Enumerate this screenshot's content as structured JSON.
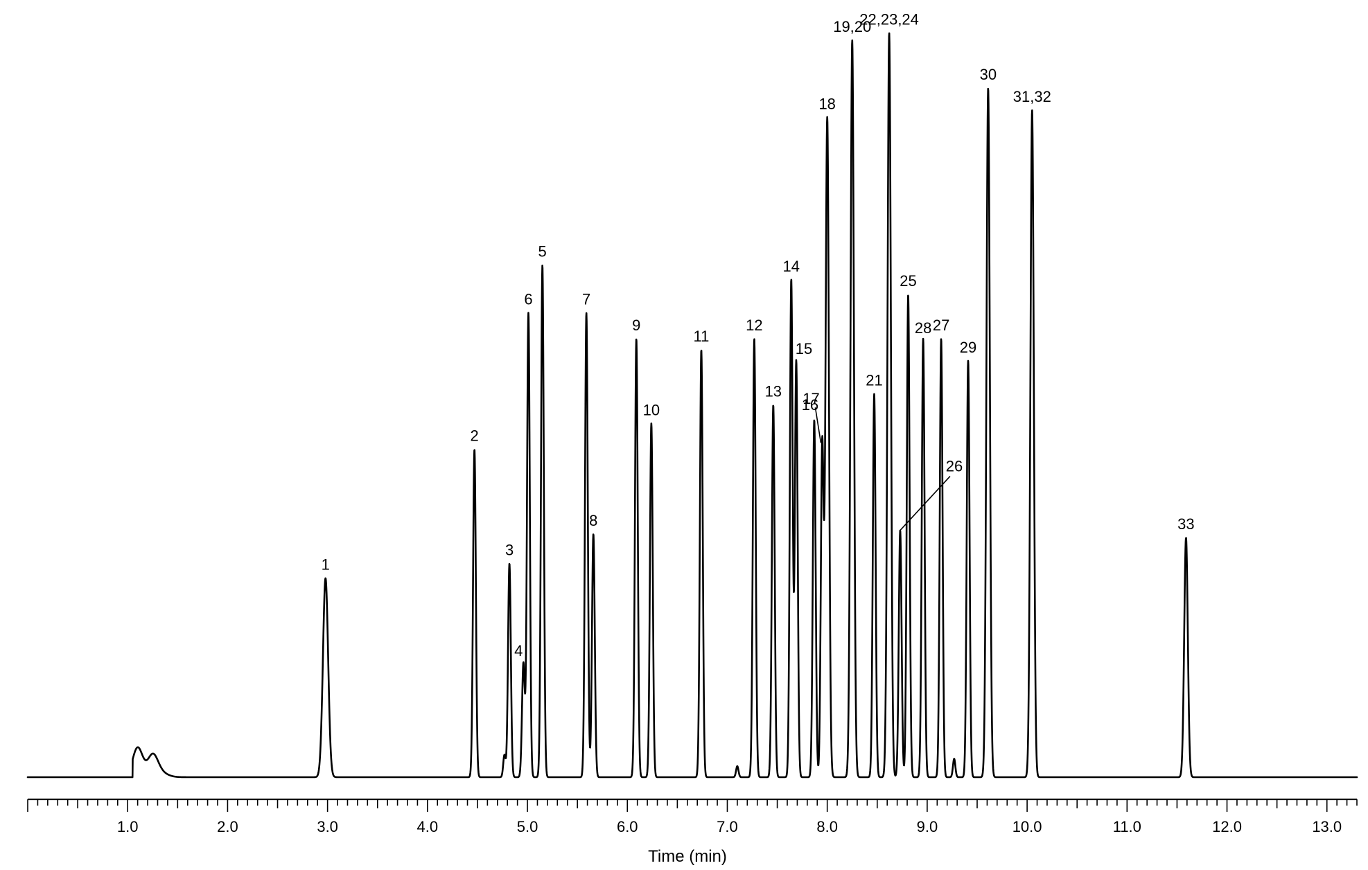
{
  "chart_data": {
    "type": "line",
    "title": "",
    "xlabel": "Time (min)",
    "ylabel": "",
    "xlim": [
      0,
      13.3
    ],
    "ylim": [
      0,
      1
    ],
    "grid": false,
    "legend": "none",
    "line_color": "#000000",
    "x_major_ticks": [
      1,
      2,
      3,
      4,
      5,
      6,
      7,
      8,
      9,
      10,
      11,
      12,
      13
    ],
    "x_tick_labels": [
      "1.0",
      "2.0",
      "3.0",
      "4.0",
      "5.0",
      "6.0",
      "7.0",
      "8.0",
      "9.0",
      "10.0",
      "11.0",
      "12.0",
      "13.0"
    ],
    "x_minor_tick_step": 0.1,
    "peaks": [
      {
        "label": "1",
        "x": 2.98,
        "height": 0.27
      },
      {
        "label": "2",
        "x": 4.47,
        "height": 0.445
      },
      {
        "label": "3",
        "x": 4.82,
        "height": 0.29
      },
      {
        "label": "4",
        "x": 4.96,
        "height": 0.155
      },
      {
        "label": "5",
        "x": 5.15,
        "height": 0.695
      },
      {
        "label": "6",
        "x": 5.01,
        "height": 0.63
      },
      {
        "label": "7",
        "x": 5.59,
        "height": 0.63
      },
      {
        "label": "8",
        "x": 5.66,
        "height": 0.33
      },
      {
        "label": "9",
        "x": 6.09,
        "height": 0.595
      },
      {
        "label": "10",
        "x": 6.24,
        "height": 0.48
      },
      {
        "label": "11",
        "x": 6.74,
        "height": 0.58
      },
      {
        "label": "12",
        "x": 7.27,
        "height": 0.595
      },
      {
        "label": "13",
        "x": 7.46,
        "height": 0.505
      },
      {
        "label": "14",
        "x": 7.64,
        "height": 0.675
      },
      {
        "label": "15",
        "x": 7.69,
        "height": 0.565
      },
      {
        "label": "16",
        "x": 7.87,
        "height": 0.485
      },
      {
        "label": "17",
        "x": 7.95,
        "height": 0.45
      },
      {
        "label": "18",
        "x": 8.0,
        "height": 0.895
      },
      {
        "label": "19,20",
        "x": 8.25,
        "height": 1.0
      },
      {
        "label": "21",
        "x": 8.47,
        "height": 0.52
      },
      {
        "label": "22,23,24",
        "x": 8.62,
        "height": 1.01
      },
      {
        "label": "25",
        "x": 8.81,
        "height": 0.655
      },
      {
        "label": "26",
        "x": 8.73,
        "height": 0.335
      },
      {
        "label": "27",
        "x": 9.14,
        "height": 0.595
      },
      {
        "label": "28",
        "x": 8.96,
        "height": 0.595
      },
      {
        "label": "29",
        "x": 9.41,
        "height": 0.565
      },
      {
        "label": "30",
        "x": 9.61,
        "height": 0.935
      },
      {
        "label": "31,32",
        "x": 10.05,
        "height": 0.905
      },
      {
        "label": "33",
        "x": 11.59,
        "height": 0.325
      }
    ],
    "minor_features": [
      {
        "x": 1.1,
        "height": 0.04
      },
      {
        "x": 1.25,
        "height": 0.025
      },
      {
        "x": 4.77,
        "height": 0.03
      },
      {
        "x": 7.1,
        "height": 0.015
      },
      {
        "x": 9.27,
        "height": 0.025
      }
    ]
  }
}
